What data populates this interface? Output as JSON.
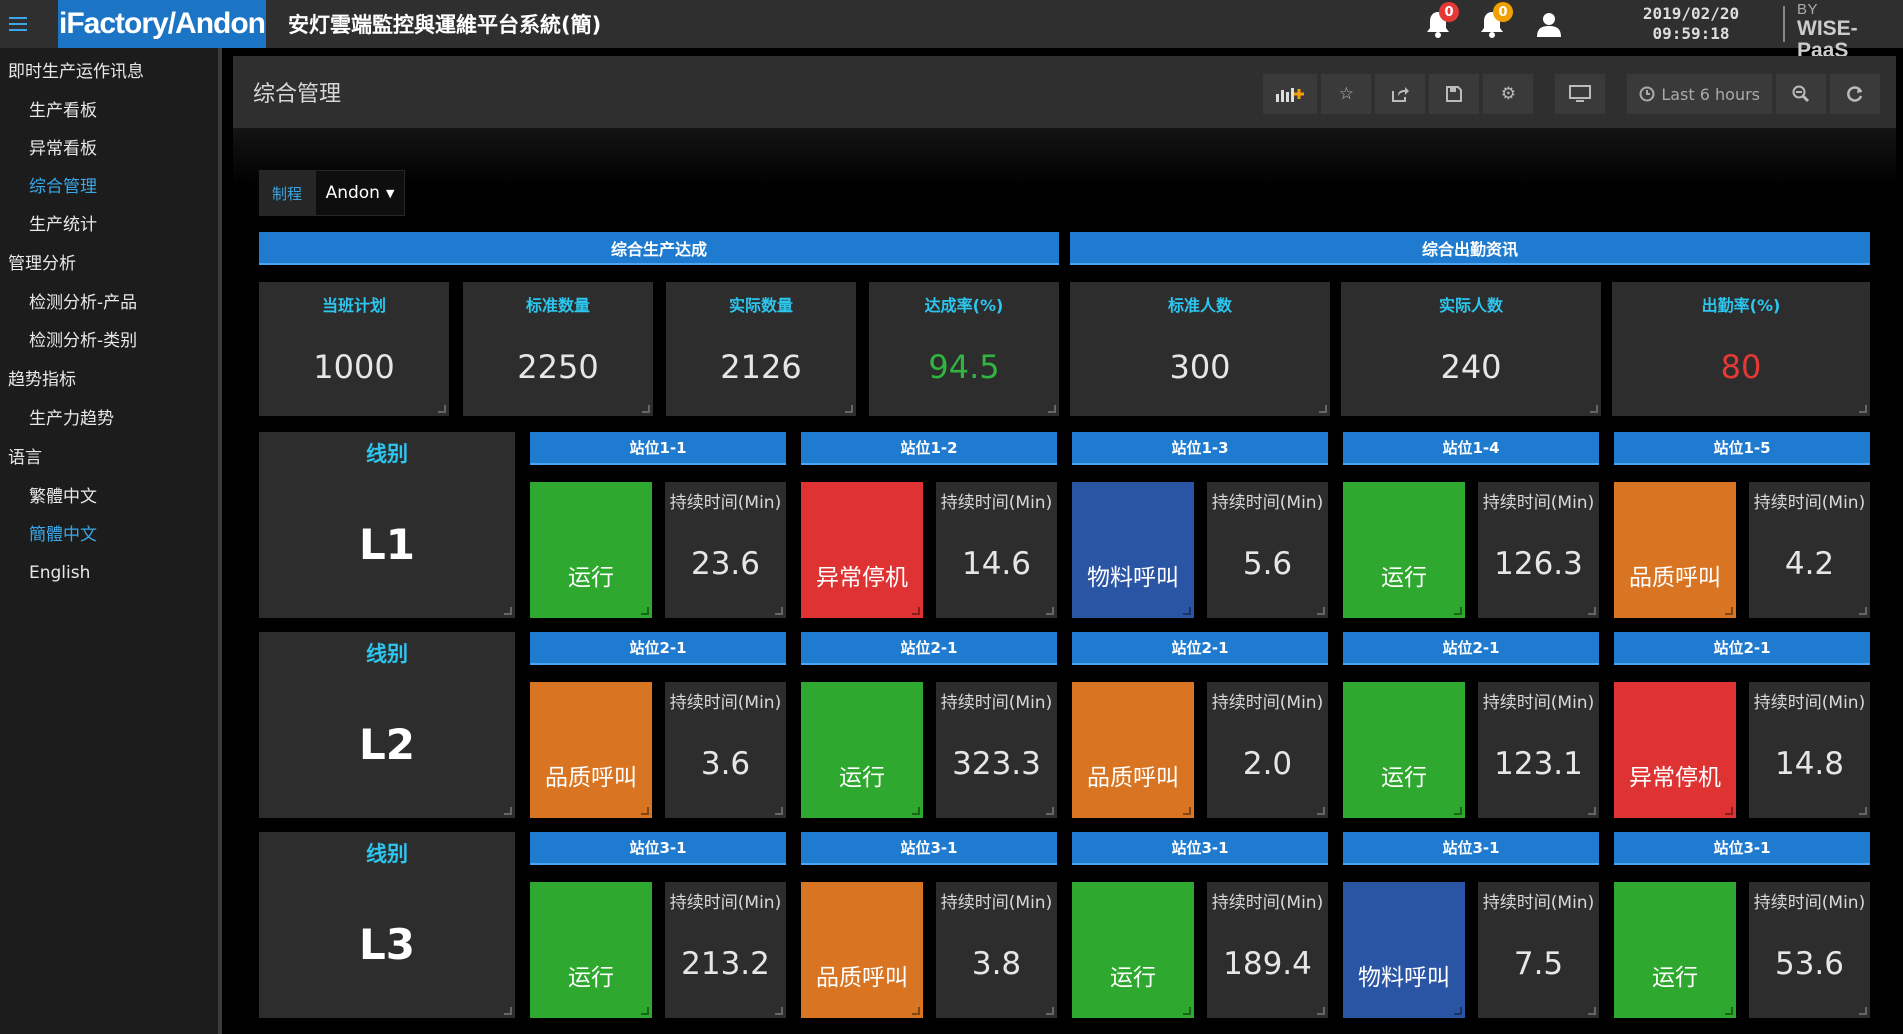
{
  "topbar": {
    "logo": "iFactory/Andon",
    "title": "安灯雲端監控與運維平台系統(簡)",
    "notifications": [
      {
        "icon": "bell-icon",
        "count": "0",
        "color": "#e53935"
      },
      {
        "icon": "bell-icon",
        "count": "0",
        "color": "#f0a000"
      }
    ],
    "date": "2019/02/20",
    "time": "09:59:18",
    "powered_line1": "POWERED BY",
    "powered_line2": "WISE-PaaS"
  },
  "sidebar": {
    "sections": [
      {
        "title": "即时生产运作讯息",
        "items": [
          "生产看板",
          "异常看板",
          "综合管理",
          "生产统计"
        ]
      },
      {
        "title": "管理分析",
        "items": [
          "检测分析-产品",
          "检测分析-类别"
        ]
      },
      {
        "title": "趋势指标",
        "items": [
          "生产力趋势"
        ]
      },
      {
        "title": "语言",
        "items": [
          "繁體中文",
          "簡體中文",
          "English"
        ]
      }
    ],
    "active": [
      "综合管理",
      "簡體中文"
    ]
  },
  "header": {
    "title": "综合管理",
    "time_range": "Last 6 hours"
  },
  "variable": {
    "label": "制程",
    "value": "Andon"
  },
  "banners": {
    "production": "综合生产达成",
    "attendance": "综合出勤资讯"
  },
  "stats": [
    {
      "label": "当班计划",
      "value": "1000"
    },
    {
      "label": "标准数量",
      "value": "2250"
    },
    {
      "label": "实际数量",
      "value": "2126"
    },
    {
      "label": "达成率(%)",
      "value": "94.5"
    },
    {
      "label": "标准人数",
      "value": "300"
    },
    {
      "label": "实际人数",
      "value": "240"
    },
    {
      "label": "出勤率(%)",
      "value": "80"
    }
  ],
  "colors": {
    "running": "#2ea82e",
    "abnormal_stop": "#df3232",
    "material_call": "#2a55a5",
    "quality_call": "#d97522",
    "banner": "#1f7bd0",
    "achievement_value": "#2fb540",
    "attendance_value": "#e53935"
  },
  "line_label": "线别",
  "duration_label": "持续时间(Min)",
  "lines": [
    {
      "name": "L1",
      "stations": [
        {
          "title": "站位1-1",
          "status": "运行",
          "state": "running",
          "duration": "23.6"
        },
        {
          "title": "站位1-2",
          "status": "异常停机",
          "state": "abnormal_stop",
          "duration": "14.6"
        },
        {
          "title": "站位1-3",
          "status": "物料呼叫",
          "state": "material_call",
          "duration": "5.6"
        },
        {
          "title": "站位1-4",
          "status": "运行",
          "state": "running",
          "duration": "126.3"
        },
        {
          "title": "站位1-5",
          "status": "品质呼叫",
          "state": "quality_call",
          "duration": "4.2"
        }
      ]
    },
    {
      "name": "L2",
      "stations": [
        {
          "title": "站位2-1",
          "status": "品质呼叫",
          "state": "quality_call",
          "duration": "3.6"
        },
        {
          "title": "站位2-1",
          "status": "运行",
          "state": "running",
          "duration": "323.3"
        },
        {
          "title": "站位2-1",
          "status": "品质呼叫",
          "state": "quality_call",
          "duration": "2.0"
        },
        {
          "title": "站位2-1",
          "status": "运行",
          "state": "running",
          "duration": "123.1"
        },
        {
          "title": "站位2-1",
          "status": "异常停机",
          "state": "abnormal_stop",
          "duration": "14.8"
        }
      ]
    },
    {
      "name": "L3",
      "stations": [
        {
          "title": "站位3-1",
          "status": "运行",
          "state": "running",
          "duration": "213.2"
        },
        {
          "title": "站位3-1",
          "status": "品质呼叫",
          "state": "quality_call",
          "duration": "3.8"
        },
        {
          "title": "站位3-1",
          "status": "运行",
          "state": "running",
          "duration": "189.4"
        },
        {
          "title": "站位3-1",
          "status": "物料呼叫",
          "state": "material_call",
          "duration": "7.5"
        },
        {
          "title": "站位3-1",
          "status": "运行",
          "state": "running",
          "duration": "53.6"
        }
      ]
    }
  ]
}
